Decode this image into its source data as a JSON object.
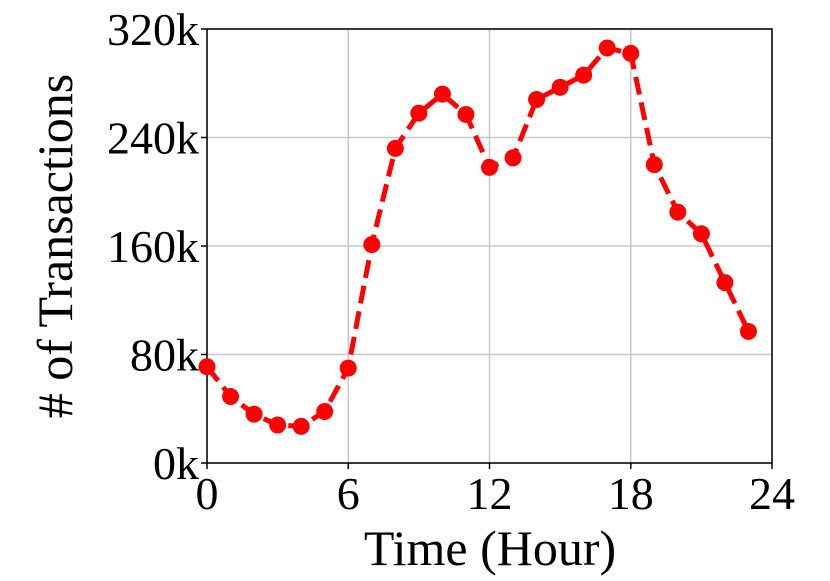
{
  "chart_data": {
    "type": "line",
    "x_label": "Time (Hour)",
    "y_label": "# of Transactions",
    "x": [
      0,
      1,
      2,
      3,
      4,
      5,
      6,
      7,
      8,
      9,
      10,
      11,
      12,
      13,
      14,
      15,
      16,
      17,
      18,
      19,
      20,
      21,
      22,
      23
    ],
    "series": [
      {
        "color": "#ff0000",
        "values": [
          71000,
          49000,
          36000,
          28000,
          27000,
          38000,
          70000,
          161000,
          232000,
          258000,
          272000,
          257000,
          218000,
          225000,
          268000,
          277000,
          286000,
          306000,
          302000,
          220000,
          185000,
          169000,
          133000,
          97000
        ]
      }
    ],
    "xlim": [
      0,
      24
    ],
    "xticks": [
      0,
      6,
      12,
      18,
      24
    ],
    "ylim": [
      0,
      320000
    ],
    "yticks": [
      {
        "value": 0,
        "label": "0k"
      },
      {
        "value": 80000,
        "label": "80k"
      },
      {
        "value": 160000,
        "label": "160k"
      },
      {
        "value": 240000,
        "label": "240k"
      },
      {
        "value": 320000,
        "label": "320k"
      }
    ],
    "grid": true
  }
}
